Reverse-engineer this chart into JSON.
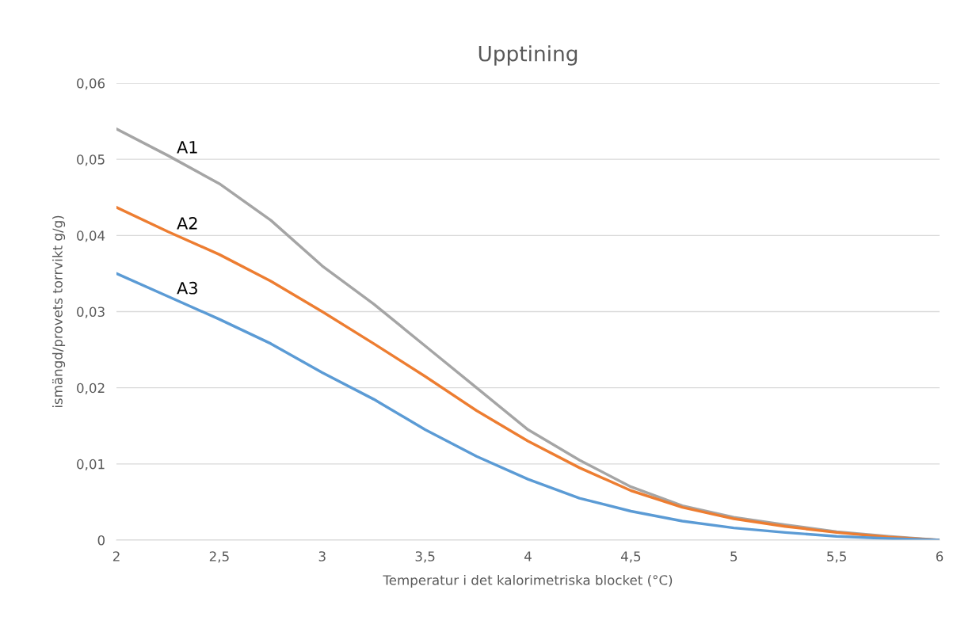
{
  "chart_data": {
    "type": "line",
    "title": "Upptining",
    "xlabel": "Temperatur i det kalorimetriska blocket (°C)",
    "ylabel": "ismängd/provets torrvikt g/g)",
    "x": [
      2,
      2.25,
      2.5,
      2.75,
      3,
      3.25,
      3.5,
      3.75,
      4,
      4.25,
      4.5,
      4.75,
      5,
      5.25,
      5.5,
      5.75,
      6
    ],
    "series": [
      {
        "name": "A1",
        "color": "#a5a5a5",
        "values": [
          0.054,
          0.0505,
          0.0468,
          0.042,
          0.036,
          0.031,
          0.0255,
          0.02,
          0.0145,
          0.0105,
          0.007,
          0.0045,
          0.003,
          0.002,
          0.0011,
          0.0005,
          0
        ]
      },
      {
        "name": "A2",
        "color": "#ed7d31",
        "values": [
          0.0437,
          0.0405,
          0.0375,
          0.034,
          0.03,
          0.0258,
          0.0215,
          0.017,
          0.013,
          0.0095,
          0.0065,
          0.0043,
          0.0028,
          0.0018,
          0.001,
          0.0004,
          0
        ]
      },
      {
        "name": "A3",
        "color": "#5b9bd5",
        "values": [
          0.035,
          0.032,
          0.029,
          0.0258,
          0.022,
          0.0185,
          0.0145,
          0.011,
          0.008,
          0.0055,
          0.0038,
          0.0025,
          0.0016,
          0.001,
          0.0005,
          0.0002,
          0
        ]
      }
    ],
    "xlim": [
      2,
      6
    ],
    "xticks": [
      2,
      {
        "value": 2.5,
        "label": "2,5"
      },
      3,
      {
        "value": 3.5,
        "label": "3,5"
      },
      4,
      {
        "value": 4.5,
        "label": "4,5"
      },
      5,
      {
        "value": 5.5,
        "label": "5,5"
      },
      6
    ],
    "ylim": [
      0,
      0.06
    ],
    "yticks": [
      0,
      {
        "value": 0.01,
        "label": "0,01"
      },
      {
        "value": 0.02,
        "label": "0,02"
      },
      {
        "value": 0.03,
        "label": "0,03"
      },
      {
        "value": 0.04,
        "label": "0,04"
      },
      {
        "value": 0.05,
        "label": "0,05"
      },
      {
        "value": 0.06,
        "label": "0,06"
      }
    ],
    "grid": "y",
    "marker": "none",
    "line_style": "solid"
  }
}
